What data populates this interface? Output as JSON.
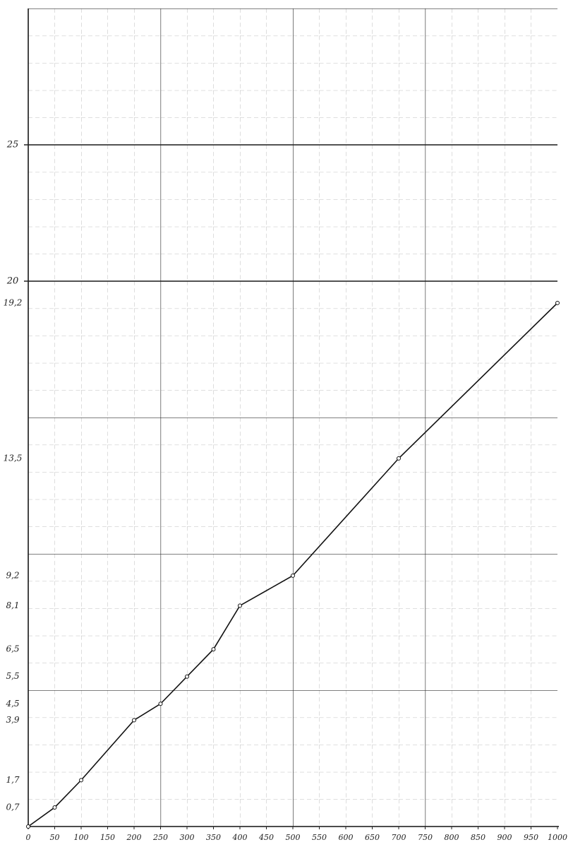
{
  "chart_data": {
    "type": "line",
    "x": [
      0,
      50,
      100,
      200,
      250,
      300,
      350,
      400,
      500,
      700,
      1000
    ],
    "series": [
      {
        "color": "#111111",
        "values": [
          0,
          0.7,
          1.7,
          3.9,
          4.5,
          5.5,
          6.5,
          8.1,
          9.2,
          13.5,
          19.2
        ],
        "value_labels": [
          null,
          "0,7",
          "1,7",
          "3,9",
          "4,5",
          "5,5",
          "6,5",
          "8,1",
          "9,2",
          "13,5",
          "19,2"
        ]
      }
    ],
    "xlim": [
      0,
      1000
    ],
    "ylim": [
      0,
      30
    ],
    "xticks": [
      0,
      50,
      100,
      150,
      200,
      250,
      300,
      350,
      400,
      450,
      500,
      550,
      600,
      650,
      700,
      750,
      800,
      850,
      900,
      950,
      1000
    ],
    "yticks": [
      20,
      25
    ],
    "grid": true
  }
}
